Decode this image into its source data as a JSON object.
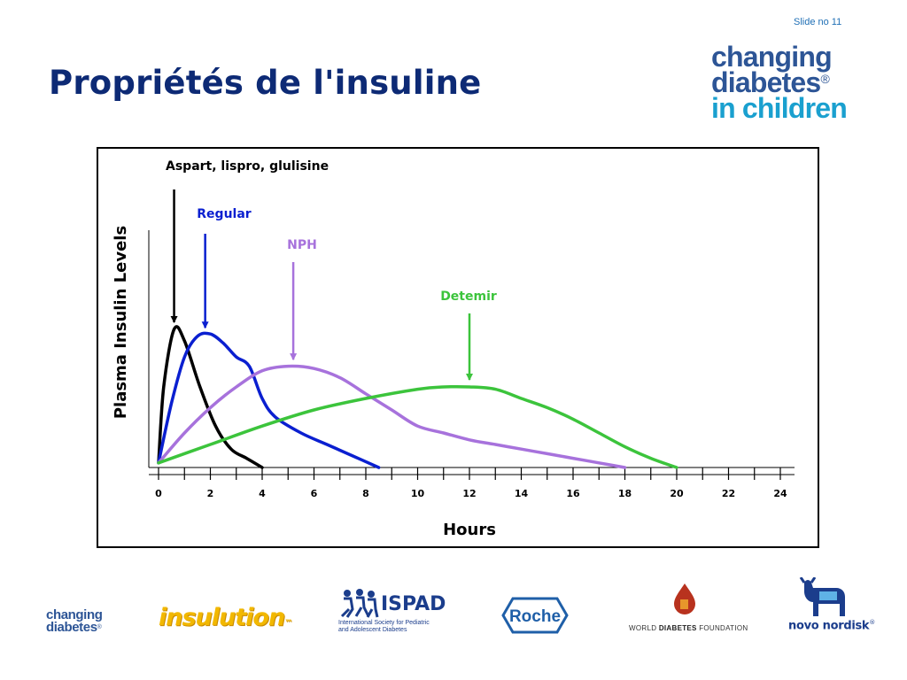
{
  "slide": {
    "number_label": "Slide no 11",
    "title": "Propriétés de l'insuline"
  },
  "brand": {
    "line1": "changing",
    "line2": "diabetes",
    "line3": "in children",
    "registered": "®"
  },
  "footer": {
    "cd_line1": "changing",
    "cd_line2": "diabetes",
    "cd_registered": "®",
    "insulution": "insulution",
    "insulution_tm": "™",
    "ispad_name": "ISPAD",
    "ispad_line1": "International Society for Pediatric",
    "ispad_line2": "and Adolescent Diabetes",
    "roche": "Roche",
    "wdf_prefix": "WORLD ",
    "wdf_bold": "DIABETES",
    "wdf_suffix": " FOUNDATION",
    "novo": "novo nordisk",
    "novo_registered": "®"
  },
  "colors": {
    "title": "#0d2a75",
    "aspart": "#000000",
    "regular": "#0a1fd0",
    "nph": "#a772dc",
    "detemir": "#3cc43c"
  },
  "chart_data": {
    "type": "line",
    "xlabel": "Hours",
    "ylabel": "Plasma Insulin Levels",
    "xlim": [
      0,
      24
    ],
    "ylim": [
      0,
      100
    ],
    "x_ticks": [
      0,
      2,
      4,
      6,
      8,
      10,
      12,
      14,
      16,
      18,
      20,
      22,
      24
    ],
    "grid": false,
    "series": [
      {
        "name": "Aspart, lispro, glulisine",
        "color": "#000000",
        "x": [
          0,
          0.2,
          0.6,
          1.0,
          1.6,
          2.2,
          2.8,
          3.4,
          4.0
        ],
        "y": [
          2,
          35,
          60,
          55,
          35,
          18,
          8,
          4,
          0
        ],
        "arrow_x": 0.6
      },
      {
        "name": "Regular",
        "color": "#0a1fd0",
        "x": [
          0,
          0.5,
          1.0,
          1.5,
          2.0,
          2.5,
          3.0,
          3.5,
          4.0,
          4.5,
          5.5,
          6.5,
          7.5,
          8.5
        ],
        "y": [
          2,
          28,
          48,
          57,
          58,
          54,
          48,
          44,
          30,
          22,
          15,
          10,
          5,
          0
        ],
        "arrow_x": 1.8
      },
      {
        "name": "NPH",
        "color": "#a772dc",
        "x": [
          0,
          1,
          2,
          3,
          4,
          5,
          6,
          7,
          8,
          9,
          10,
          11,
          12,
          13,
          14,
          15,
          16,
          17,
          18
        ],
        "y": [
          2,
          15,
          26,
          35,
          42,
          44,
          43,
          39,
          32,
          25,
          18,
          15,
          12,
          10,
          8,
          6,
          4,
          2,
          0
        ],
        "arrow_x": 5.2
      },
      {
        "name": "Detemir",
        "color": "#3cc43c",
        "x": [
          0,
          2,
          4,
          6,
          8,
          10,
          11,
          12,
          13,
          14,
          15,
          16,
          17,
          18,
          19,
          20
        ],
        "y": [
          2,
          10,
          18,
          25,
          30,
          34,
          35,
          35,
          34,
          30,
          26,
          21,
          15,
          9,
          4,
          0
        ],
        "arrow_x": 12
      }
    ]
  }
}
